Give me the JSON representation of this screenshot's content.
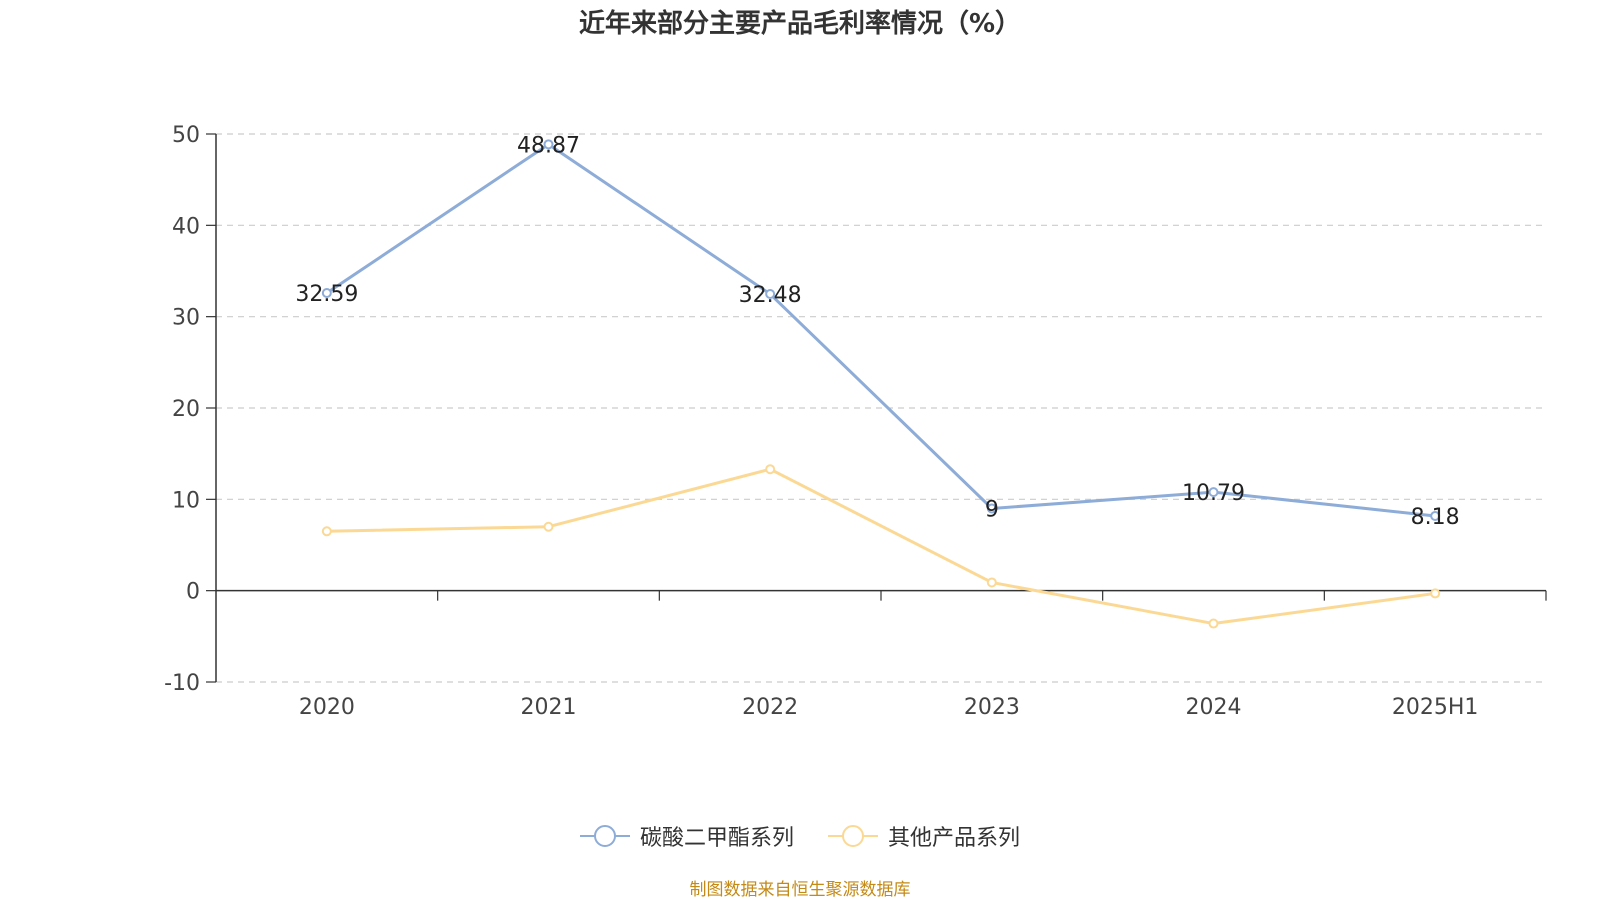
{
  "title": "近年来部分主要产品毛利率情况（%）",
  "source_note": "制图数据来自恒生聚源数据库",
  "colors": {
    "series_1": "#8eacd8",
    "series_2": "#fbd995",
    "axis": "#333333",
    "grid": "#cccccc",
    "label": "#222222",
    "tick_label": "#444444",
    "source": "#c48a16"
  },
  "legend": {
    "placement": "bottom-center",
    "items": [
      {
        "label": "碳酸二甲酯系列",
        "color": "#8eacd8"
      },
      {
        "label": "其他产品系列",
        "color": "#fbd995"
      }
    ]
  },
  "chart_data": {
    "type": "line",
    "title": "近年来部分主要产品毛利率情况（%）",
    "xlabel": "",
    "ylabel": "",
    "categories": [
      "2020",
      "2021",
      "2022",
      "2023",
      "2024",
      "2025H1"
    ],
    "ylim": [
      -10,
      50
    ],
    "yticks": [
      "-10",
      "0",
      "10",
      "20",
      "30",
      "40",
      "50"
    ],
    "grid": true,
    "series": [
      {
        "name": "碳酸二甲酯系列",
        "values": [
          32.59,
          48.87,
          32.48,
          9,
          10.79,
          8.18
        ],
        "data_labels": [
          "32.59",
          "48.87",
          "32.48",
          "9",
          "10.79",
          "8.18"
        ],
        "show_labels": true
      },
      {
        "name": "其他产品系列",
        "values": [
          6.5,
          7.0,
          13.3,
          0.9,
          -3.6,
          -0.3
        ],
        "data_labels": [],
        "show_labels": false
      }
    ]
  }
}
